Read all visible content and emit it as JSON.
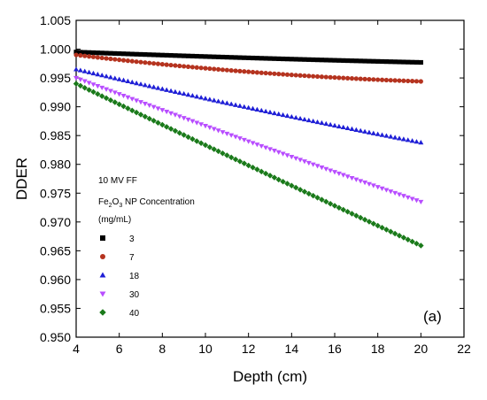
{
  "chart_data": {
    "type": "scatter",
    "xlabel": "Depth (cm)",
    "ylabel": "DDER",
    "xlim": [
      4,
      22
    ],
    "ylim": [
      0.95,
      1.005
    ],
    "xticks": [
      4,
      6,
      8,
      10,
      12,
      14,
      16,
      18,
      20,
      22
    ],
    "yticks": [
      0.95,
      0.955,
      0.96,
      0.965,
      0.97,
      0.975,
      0.98,
      0.985,
      0.99,
      0.995,
      1.0,
      1.005
    ],
    "xtick_labels": [
      "4",
      "6",
      "8",
      "10",
      "12",
      "14",
      "16",
      "18",
      "20",
      "22"
    ],
    "ytick_labels": [
      "0.950",
      "0.955",
      "0.960",
      "0.965",
      "0.970",
      "0.975",
      "0.980",
      "0.985",
      "0.990",
      "0.995",
      "1.000",
      "1.005"
    ],
    "grid": false,
    "legend": {
      "title_line1": "10 MV FF",
      "title_line2_main": "Fe",
      "title_line2_sub1": "2",
      "title_line2_mid": "O",
      "title_line2_sub2": "3",
      "title_line2_end": " NP Concentration",
      "title_line3": "(mg/mL)",
      "placement": "left-middle"
    },
    "annotation": "(a)",
    "x_range": [
      4,
      20
    ],
    "series": [
      {
        "name": "3",
        "marker": "square",
        "color": "#000000",
        "y_start": 0.9995,
        "y_end": 0.9977,
        "curvature": 0.25
      },
      {
        "name": "7",
        "marker": "circle",
        "color": "#b5331f",
        "y_start": 0.999,
        "y_end": 0.9944,
        "curvature": 0.55
      },
      {
        "name": "18",
        "marker": "triangle-up",
        "color": "#1f1fd6",
        "y_start": 0.9965,
        "y_end": 0.9838,
        "curvature": 0.1
      },
      {
        "name": "30",
        "marker": "triangle-down",
        "color": "#b84dff",
        "y_start": 0.995,
        "y_end": 0.9735,
        "curvature": 0.05
      },
      {
        "name": "40",
        "marker": "diamond",
        "color": "#1a7a1a",
        "y_start": 0.994,
        "y_end": 0.9659,
        "curvature": 0.02
      }
    ]
  }
}
